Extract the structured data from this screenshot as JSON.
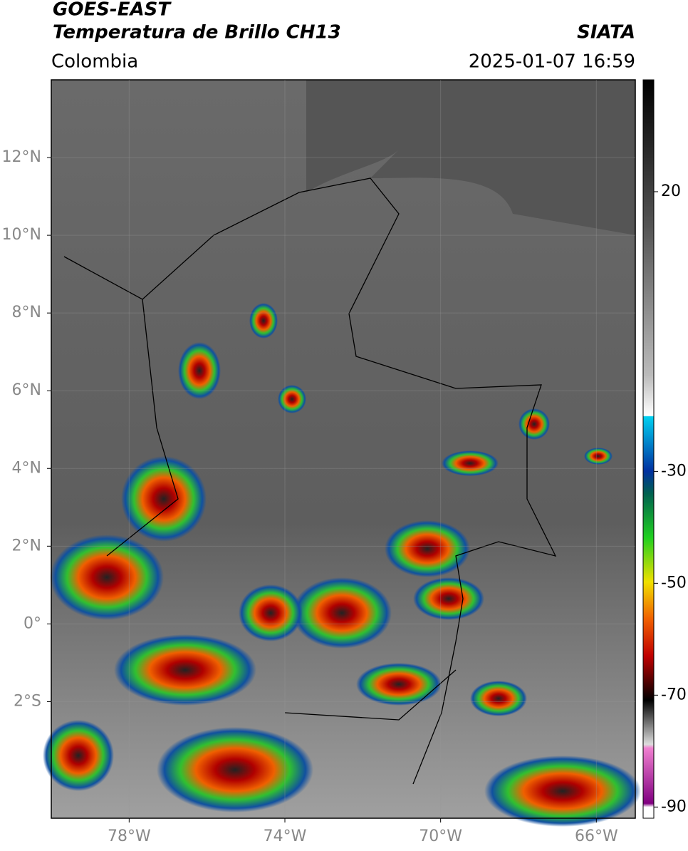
{
  "header": {
    "title": "GOES-EAST",
    "subtitle": "Temperatura de Brillo CH13",
    "source": "SIATA",
    "region": "Colombia",
    "datetime": "2025-01-07 16:59"
  },
  "map": {
    "lat_lim": [
      -5,
      14
    ],
    "lon_lim": [
      -80,
      -65
    ],
    "lat_ticks": [
      {
        "value": 12,
        "label": "12°N"
      },
      {
        "value": 10,
        "label": "10°N"
      },
      {
        "value": 8,
        "label": "8°N"
      },
      {
        "value": 6,
        "label": "6°N"
      },
      {
        "value": 4,
        "label": "4°N"
      },
      {
        "value": 2,
        "label": "2°N"
      },
      {
        "value": 0,
        "label": "0°"
      },
      {
        "value": -2,
        "label": "2°S"
      }
    ],
    "lon_ticks": [
      {
        "value": -78,
        "label": "78°W"
      },
      {
        "value": -74,
        "label": "74°W"
      },
      {
        "value": -70,
        "label": "70°W"
      },
      {
        "value": -66,
        "label": "66°W"
      }
    ]
  },
  "colorbar": {
    "lim": [
      -92,
      40
    ],
    "ticks": [
      20,
      -30,
      -50,
      -70,
      -90
    ]
  }
}
